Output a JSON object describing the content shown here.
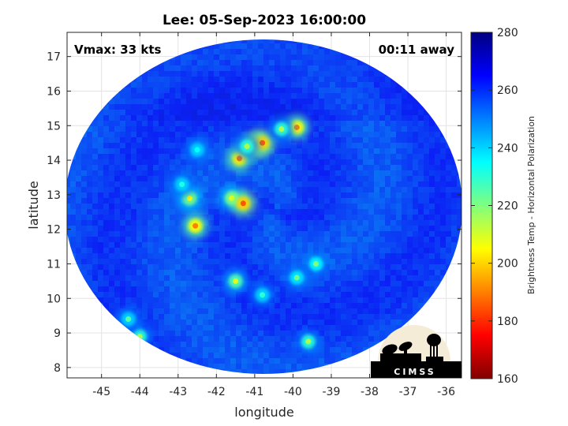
{
  "chart_data": {
    "type": "heatmap",
    "title": "Lee: 05-Sep-2023 16:00:00",
    "xlabel": "longitude",
    "ylabel": "latitude",
    "xlim": [
      -45.9,
      -35.6
    ],
    "ylim": [
      7.7,
      17.7
    ],
    "x_ticks": [
      -45,
      -44,
      -43,
      -42,
      -41,
      -40,
      -39,
      -38,
      -37,
      -36
    ],
    "y_ticks": [
      8,
      9,
      10,
      11,
      12,
      13,
      14,
      15,
      16,
      17
    ],
    "grid": true,
    "colormap": "jet",
    "colorbar": {
      "label": "Brightness Temp - Horizontal Polarization",
      "min": 160,
      "max": 280,
      "ticks": [
        160,
        180,
        200,
        220,
        240,
        260,
        280
      ]
    },
    "swath_center": {
      "lon": -40.5,
      "lat": 12.6
    },
    "cold_features": [
      {
        "lon": -41.6,
        "lat": 12.9,
        "temp": 205
      },
      {
        "lon": -41.3,
        "lat": 12.75,
        "temp": 185
      },
      {
        "lon": -41.0,
        "lat": 14.45,
        "temp": 182
      },
      {
        "lon": -40.8,
        "lat": 14.5,
        "temp": 185
      },
      {
        "lon": -41.4,
        "lat": 14.05,
        "temp": 188
      },
      {
        "lon": -39.9,
        "lat": 14.95,
        "temp": 190
      },
      {
        "lon": -42.55,
        "lat": 12.1,
        "temp": 190
      },
      {
        "lon": -42.7,
        "lat": 12.9,
        "temp": 205
      },
      {
        "lon": -41.5,
        "lat": 10.5,
        "temp": 210
      },
      {
        "lon": -40.3,
        "lat": 14.9,
        "temp": 215
      },
      {
        "lon": -41.2,
        "lat": 14.4,
        "temp": 215
      },
      {
        "lon": -39.4,
        "lat": 11.0,
        "temp": 220
      },
      {
        "lon": -39.9,
        "lat": 10.6,
        "temp": 222
      },
      {
        "lon": -44.0,
        "lat": 8.9,
        "temp": 215
      },
      {
        "lon": -44.3,
        "lat": 9.4,
        "temp": 225
      },
      {
        "lon": -39.6,
        "lat": 8.75,
        "temp": 215
      },
      {
        "lon": -40.8,
        "lat": 10.1,
        "temp": 230
      },
      {
        "lon": -42.5,
        "lat": 14.3,
        "temp": 235
      },
      {
        "lon": -42.9,
        "lat": 13.3,
        "temp": 232
      }
    ]
  },
  "annotations": {
    "vmax": "Vmax: 33 kts",
    "time_away": "00:11 away"
  },
  "logo": {
    "text": "CIMSS"
  }
}
